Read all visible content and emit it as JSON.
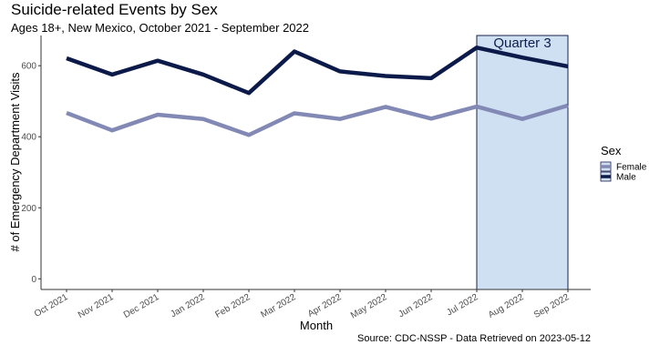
{
  "colors": {
    "male": "#0c1a4a",
    "female": "#8389b5",
    "band_fill": "#cfe0f3",
    "band_border": "#1a1f4d",
    "axis": "#333333"
  },
  "chart_data": {
    "type": "line",
    "title": "Suicide-related Events by Sex",
    "subtitle": "Ages 18+, New Mexico, October 2021 - September 2022",
    "xlabel": "Month",
    "ylabel": "# of Emergency Department Visits",
    "caption": "Source: CDC-NSSP - Data Retrieved on 2023-05-12",
    "categories": [
      "Oct 2021",
      "Nov 2021",
      "Dec 2021",
      "Jan 2022",
      "Feb 2022",
      "Mar 2022",
      "Apr 2022",
      "May 2022",
      "Jun 2022",
      "Jul 2022",
      "Aug 2022",
      "Sep 2022"
    ],
    "ylim": [
      -30,
      685
    ],
    "yticks": [
      0,
      200,
      400,
      600
    ],
    "grid": false,
    "legend": {
      "title": "Sex",
      "placement": "right",
      "entries": [
        "Female",
        "Male"
      ]
    },
    "series": [
      {
        "name": "Female",
        "values": [
          467,
          418,
          462,
          450,
          405,
          466,
          450,
          484,
          451,
          485,
          450,
          488
        ]
      },
      {
        "name": "Male",
        "values": [
          621,
          575,
          614,
          575,
          523,
          640,
          584,
          571,
          565,
          651,
          623,
          598
        ]
      }
    ],
    "highlight": {
      "label": "Quarter 3",
      "from": "Jul 2022",
      "to": "Sep 2022"
    }
  }
}
